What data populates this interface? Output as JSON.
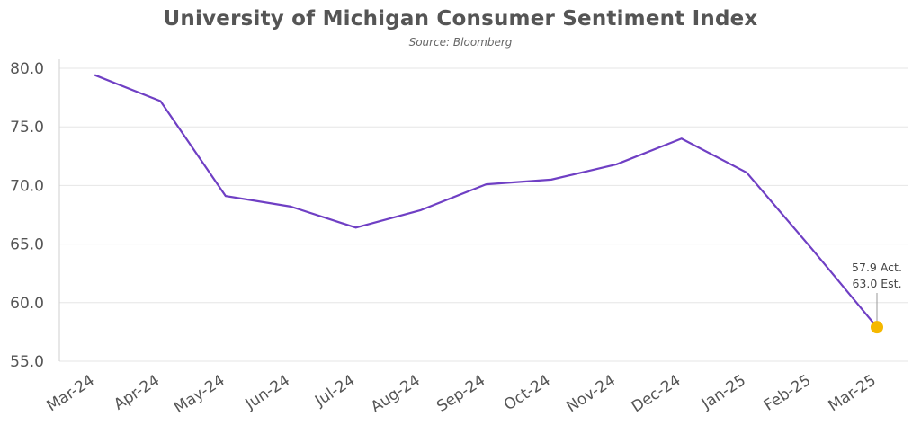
{
  "chart_data": {
    "type": "line",
    "title": "University of Michigan Consumer Sentiment Index",
    "subtitle": "Source: Bloomberg",
    "categories": [
      "Mar-24",
      "Apr-24",
      "May-24",
      "Jun-24",
      "Jul-24",
      "Aug-24",
      "Sep-24",
      "Oct-24",
      "Nov-24",
      "Dec-24",
      "Jan-25",
      "Feb-25",
      "Mar-25"
    ],
    "series": [
      {
        "values": [
          79.4,
          77.2,
          69.1,
          68.2,
          66.4,
          67.9,
          70.1,
          70.5,
          71.8,
          74.0,
          71.1,
          64.6,
          57.9
        ]
      }
    ],
    "ylim": [
      55,
      80
    ],
    "yticks": [
      55,
      60,
      65,
      70,
      75,
      80
    ],
    "ytick_labels": [
      "55.0",
      "60.0",
      "65.0",
      "70.0",
      "75.0",
      "80.0"
    ],
    "xlabel": "",
    "ylabel": "",
    "grid": true,
    "line_color": "#6f3fc4",
    "highlight_color": "#f5b800",
    "annotation": {
      "category": "Mar-25",
      "value": 57.9,
      "lines": [
        "57.9 Act.",
        "63.0 Est."
      ]
    }
  }
}
